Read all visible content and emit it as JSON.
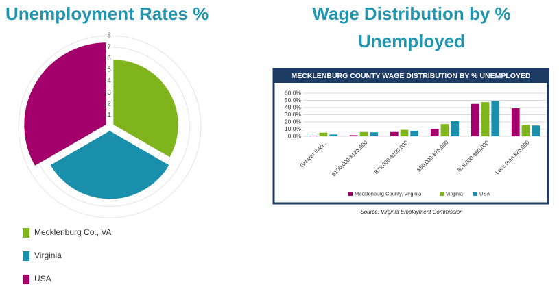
{
  "chart_data": [
    {
      "type": "polar",
      "title": "Unemployment Rates %",
      "categories": [
        "Mecklenburg Co., VA",
        "Virginia",
        "USA"
      ],
      "values": [
        5.8,
        6.1,
        7.3
      ],
      "colors": [
        "#7fb41d",
        "#1a8fab",
        "#a4006c"
      ],
      "rlim": [
        0,
        8
      ],
      "rticks": [
        1,
        2,
        3,
        4,
        5,
        6,
        7,
        8
      ]
    },
    {
      "type": "bar",
      "title": "Wage Distribution by % Unemployed",
      "inner_title": "MECKLENBURG COUNTY WAGE DISTRIBUTION BY % UNEMPLOYED",
      "source": "Source: Virginia Employment Commission",
      "categories": [
        "Greater than...",
        "$100,000-$125,000",
        "$75,000-$100,000",
        "$50,000-$75,000",
        "$25,000-$50,000",
        "Less than $25,000"
      ],
      "series": [
        {
          "name": "Mecklenburg County, Virginia",
          "color": "#a4006c",
          "values": [
            1,
            1.5,
            6,
            10.5,
            45,
            39
          ]
        },
        {
          "name": "Virginia",
          "color": "#7fb41d",
          "values": [
            5,
            6,
            9,
            17,
            47.5,
            16
          ]
        },
        {
          "name": "USA",
          "color": "#1a8fab",
          "values": [
            2.5,
            5.5,
            7.5,
            21,
            49,
            15
          ]
        }
      ],
      "ylim": [
        0,
        60
      ],
      "yticks": [
        {
          "value": 0,
          "label": "0.0%"
        },
        {
          "value": 10,
          "label": "10.0%"
        },
        {
          "value": 20,
          "label": "20.0%"
        },
        {
          "value": 30,
          "label": "30.0%"
        },
        {
          "value": 40,
          "label": "40.0%"
        },
        {
          "value": 50,
          "label": "50.0%"
        },
        {
          "value": 60,
          "label": "60.0%"
        }
      ],
      "grid": true
    }
  ]
}
